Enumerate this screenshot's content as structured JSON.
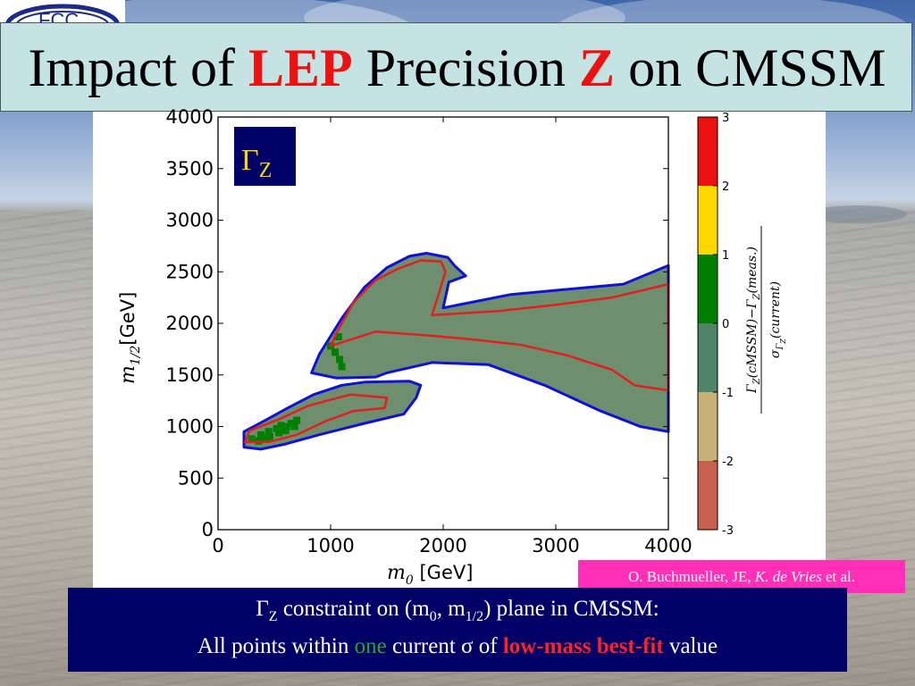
{
  "slide": {
    "title_pre": "Impact of ",
    "title_red1": "LEP",
    "title_mid": " Precision ",
    "title_red2": "Z",
    "title_post": " on CMSSM"
  },
  "logo": {
    "type": "organisation-logo"
  },
  "citation": {
    "authors_normal": "O. Buchmueller, JE, ",
    "authors_italic": "K. de Vries",
    "suffix": " et al."
  },
  "caption": {
    "gamma": "Γ",
    "gamma_sub": "Z",
    "line1_rest": " constraint on (m",
    "m0_sub": "0",
    "comma": ", m",
    "mhalf_sub": "1/2",
    "line1_end": ") plane in CMSSM:",
    "line2_a": "All points within ",
    "line2_one": "one",
    "line2_b": " current σ of ",
    "line2_bestfit": "low-mass best-fit",
    "line2_c": " value"
  },
  "colors": {
    "fill": "#6e8f6e",
    "band_0_1": "#008000",
    "contour_red": "#e02020",
    "contour_blue": "#1010dd",
    "title_red": "#ee1111",
    "caption_bg": "#000066",
    "citation_bg": "#ff2fb8"
  },
  "chart_data": {
    "type": "heatmap",
    "title": "",
    "panel_label": {
      "symbol": "Γ",
      "subscript": "Z"
    },
    "xlabel": {
      "symbol": "m",
      "subscript": "0",
      "unit": "[GeV]"
    },
    "ylabel": {
      "symbol": "m",
      "subscript": "1/2",
      "unit": "[GeV]"
    },
    "xlim": [
      0,
      4000
    ],
    "ylim": [
      0,
      4000
    ],
    "xticks": [
      0,
      1000,
      2000,
      3000,
      4000
    ],
    "yticks": [
      0,
      500,
      1000,
      1500,
      2000,
      2500,
      3000,
      3500,
      4000
    ],
    "xtick_labels": [
      "0",
      "1000",
      "2000",
      "3000",
      "4000"
    ],
    "ytick_labels": [
      "0",
      "500",
      "1000",
      "1500",
      "2000",
      "2500",
      "3000",
      "3500",
      "4000"
    ],
    "colorbar": {
      "label": "Γ_Z(cMSSM) − Γ_Z(meas.) / σ_ΓZ(current)",
      "numerator_parts": [
        "Γ",
        "Z",
        "(cMSSM)−Γ",
        "Z",
        "(meas.)"
      ],
      "denominator_parts": [
        "σ",
        "Γ",
        "Z",
        "(current)"
      ],
      "range": [
        -3,
        3
      ],
      "tick_labels": [
        "3",
        "2",
        "1",
        "0",
        "-1",
        "-2",
        "-3"
      ],
      "bands": [
        {
          "from": 2,
          "to": 3,
          "color": "#ee1111"
        },
        {
          "from": 1,
          "to": 2,
          "color": "#ffd700"
        },
        {
          "from": 0,
          "to": 1,
          "color": "#008000"
        },
        {
          "from": -1,
          "to": 0,
          "color": "#4e8566"
        },
        {
          "from": -2,
          "to": -1,
          "color": "#c7b073"
        },
        {
          "from": -3,
          "to": -2,
          "color": "#c75f4c"
        }
      ]
    },
    "regions": {
      "blue_outline_upper": [
        [
          830,
          1520
        ],
        [
          900,
          1700
        ],
        [
          1100,
          2050
        ],
        [
          1300,
          2350
        ],
        [
          1500,
          2540
        ],
        [
          1700,
          2650
        ],
        [
          1850,
          2680
        ],
        [
          2040,
          2640
        ],
        [
          2100,
          2560
        ],
        [
          2200,
          2460
        ],
        [
          2050,
          2400
        ],
        [
          2000,
          2150
        ],
        [
          2600,
          2280
        ],
        [
          3100,
          2330
        ],
        [
          3600,
          2380
        ],
        [
          4000,
          2560
        ],
        [
          4000,
          950
        ],
        [
          3750,
          1000
        ],
        [
          3400,
          1150
        ],
        [
          2900,
          1400
        ],
        [
          2400,
          1600
        ],
        [
          1900,
          1620
        ],
        [
          1500,
          1520
        ],
        [
          1400,
          1480
        ],
        [
          1050,
          1470
        ],
        [
          830,
          1520
        ]
      ],
      "blue_outline_lower": [
        [
          230,
          800
        ],
        [
          230,
          950
        ],
        [
          420,
          1060
        ],
        [
          620,
          1180
        ],
        [
          850,
          1310
        ],
        [
          1100,
          1400
        ],
        [
          1300,
          1430
        ],
        [
          1700,
          1440
        ],
        [
          1800,
          1400
        ],
        [
          1760,
          1280
        ],
        [
          1650,
          1120
        ],
        [
          1300,
          1030
        ],
        [
          900,
          920
        ],
        [
          600,
          830
        ],
        [
          380,
          780
        ],
        [
          230,
          800
        ]
      ],
      "red_contour_upper": [
        [
          1000,
          1780
        ],
        [
          1050,
          1900
        ],
        [
          1200,
          2200
        ],
        [
          1400,
          2420
        ],
        [
          1600,
          2530
        ],
        [
          1800,
          2610
        ],
        [
          1980,
          2600
        ],
        [
          2020,
          2500
        ],
        [
          1950,
          2250
        ],
        [
          1900,
          2080
        ],
        [
          2500,
          2120
        ],
        [
          3000,
          2180
        ],
        [
          3500,
          2250
        ],
        [
          4000,
          2380
        ],
        [
          4000,
          1350
        ],
        [
          3700,
          1400
        ],
        [
          3500,
          1550
        ],
        [
          3100,
          1690
        ],
        [
          2700,
          1790
        ],
        [
          2300,
          1840
        ],
        [
          1900,
          1880
        ],
        [
          1400,
          1920
        ],
        [
          1000,
          1780
        ]
      ],
      "red_contour_lower": [
        [
          240,
          850
        ],
        [
          280,
          960
        ],
        [
          520,
          1060
        ],
        [
          800,
          1200
        ],
        [
          1000,
          1260
        ],
        [
          1180,
          1310
        ],
        [
          1500,
          1280
        ],
        [
          1480,
          1180
        ],
        [
          1200,
          1150
        ],
        [
          950,
          1050
        ],
        [
          700,
          920
        ],
        [
          450,
          850
        ],
        [
          240,
          850
        ]
      ],
      "green_band_points": [
        [
          1000,
          1780
        ],
        [
          1040,
          1720
        ],
        [
          1080,
          1650
        ],
        [
          1100,
          1580
        ],
        [
          1070,
          1870
        ],
        [
          300,
          880
        ],
        [
          380,
          920
        ],
        [
          450,
          950
        ],
        [
          520,
          980
        ],
        [
          560,
          1010
        ],
        [
          610,
          1000
        ],
        [
          650,
          1030
        ],
        [
          700,
          1060
        ],
        [
          460,
          900
        ],
        [
          540,
          940
        ],
        [
          600,
          960
        ],
        [
          680,
          1000
        ],
        [
          360,
          860
        ],
        [
          420,
          890
        ]
      ]
    }
  }
}
